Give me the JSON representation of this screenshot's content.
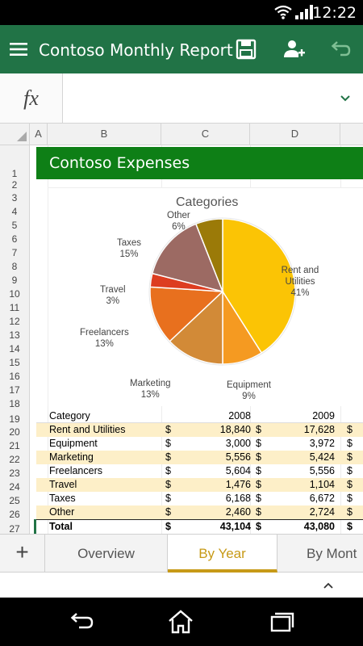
{
  "status": {
    "time": "12:22"
  },
  "appbar": {
    "title": "Contoso Monthly Report"
  },
  "formula": {
    "fx": "fx",
    "value": ""
  },
  "columns": [
    "A",
    "B",
    "C",
    "D"
  ],
  "rows": [
    "1",
    "2",
    "3",
    "4",
    "5",
    "6",
    "7",
    "8",
    "9",
    "10",
    "11",
    "12",
    "13",
    "14",
    "15",
    "16",
    "17",
    "18",
    "19",
    "20",
    "21",
    "22",
    "23",
    "24",
    "25",
    "26",
    "27"
  ],
  "sheet": {
    "banner": "Contoso Expenses"
  },
  "chart_data": {
    "type": "pie",
    "title": "Categories",
    "slices": [
      {
        "name": "Rent and Utilities",
        "percent_label": "41%",
        "value": 41,
        "color": "#fbc405"
      },
      {
        "name": "Equipment",
        "percent_label": "9%",
        "value": 9,
        "color": "#f59a21"
      },
      {
        "name": "Marketing",
        "percent_label": "13%",
        "value": 13,
        "color": "#d28a37"
      },
      {
        "name": "Freelancers",
        "percent_label": "13%",
        "value": 13,
        "color": "#e8701e"
      },
      {
        "name": "Travel",
        "percent_label": "3%",
        "value": 3,
        "color": "#dd3d20"
      },
      {
        "name": "Taxes",
        "percent_label": "15%",
        "value": 15,
        "color": "#9c6a63"
      },
      {
        "name": "Other",
        "percent_label": "6%",
        "value": 6,
        "color": "#9b7a08"
      }
    ]
  },
  "table": {
    "header": {
      "category": "Category",
      "y1": "2008",
      "y2": "2009"
    },
    "currency": "$",
    "rows": [
      {
        "category": "Rent and Utilities",
        "y1": "18,840",
        "y2": "17,628"
      },
      {
        "category": "Equipment",
        "y1": "3,000",
        "y2": "3,972"
      },
      {
        "category": "Marketing",
        "y1": "5,556",
        "y2": "5,424"
      },
      {
        "category": "Freelancers",
        "y1": "5,604",
        "y2": "5,556"
      },
      {
        "category": "Travel",
        "y1": "1,476",
        "y2": "1,104"
      },
      {
        "category": "Taxes",
        "y1": "6,168",
        "y2": "6,672"
      },
      {
        "category": "Other",
        "y1": "2,460",
        "y2": "2,724"
      }
    ],
    "total": {
      "category": "Total",
      "y1": "43,104",
      "y2": "43,080"
    }
  },
  "tabs": {
    "add": "+",
    "items": [
      {
        "label": "Overview",
        "active": false
      },
      {
        "label": "By Year",
        "active": true
      },
      {
        "label": "By Mont",
        "active": false
      }
    ]
  },
  "colors": {
    "appbar": "#217346",
    "banner": "#0e7f16",
    "accent": "#c79a17",
    "row_alt": "#fdefc8"
  }
}
